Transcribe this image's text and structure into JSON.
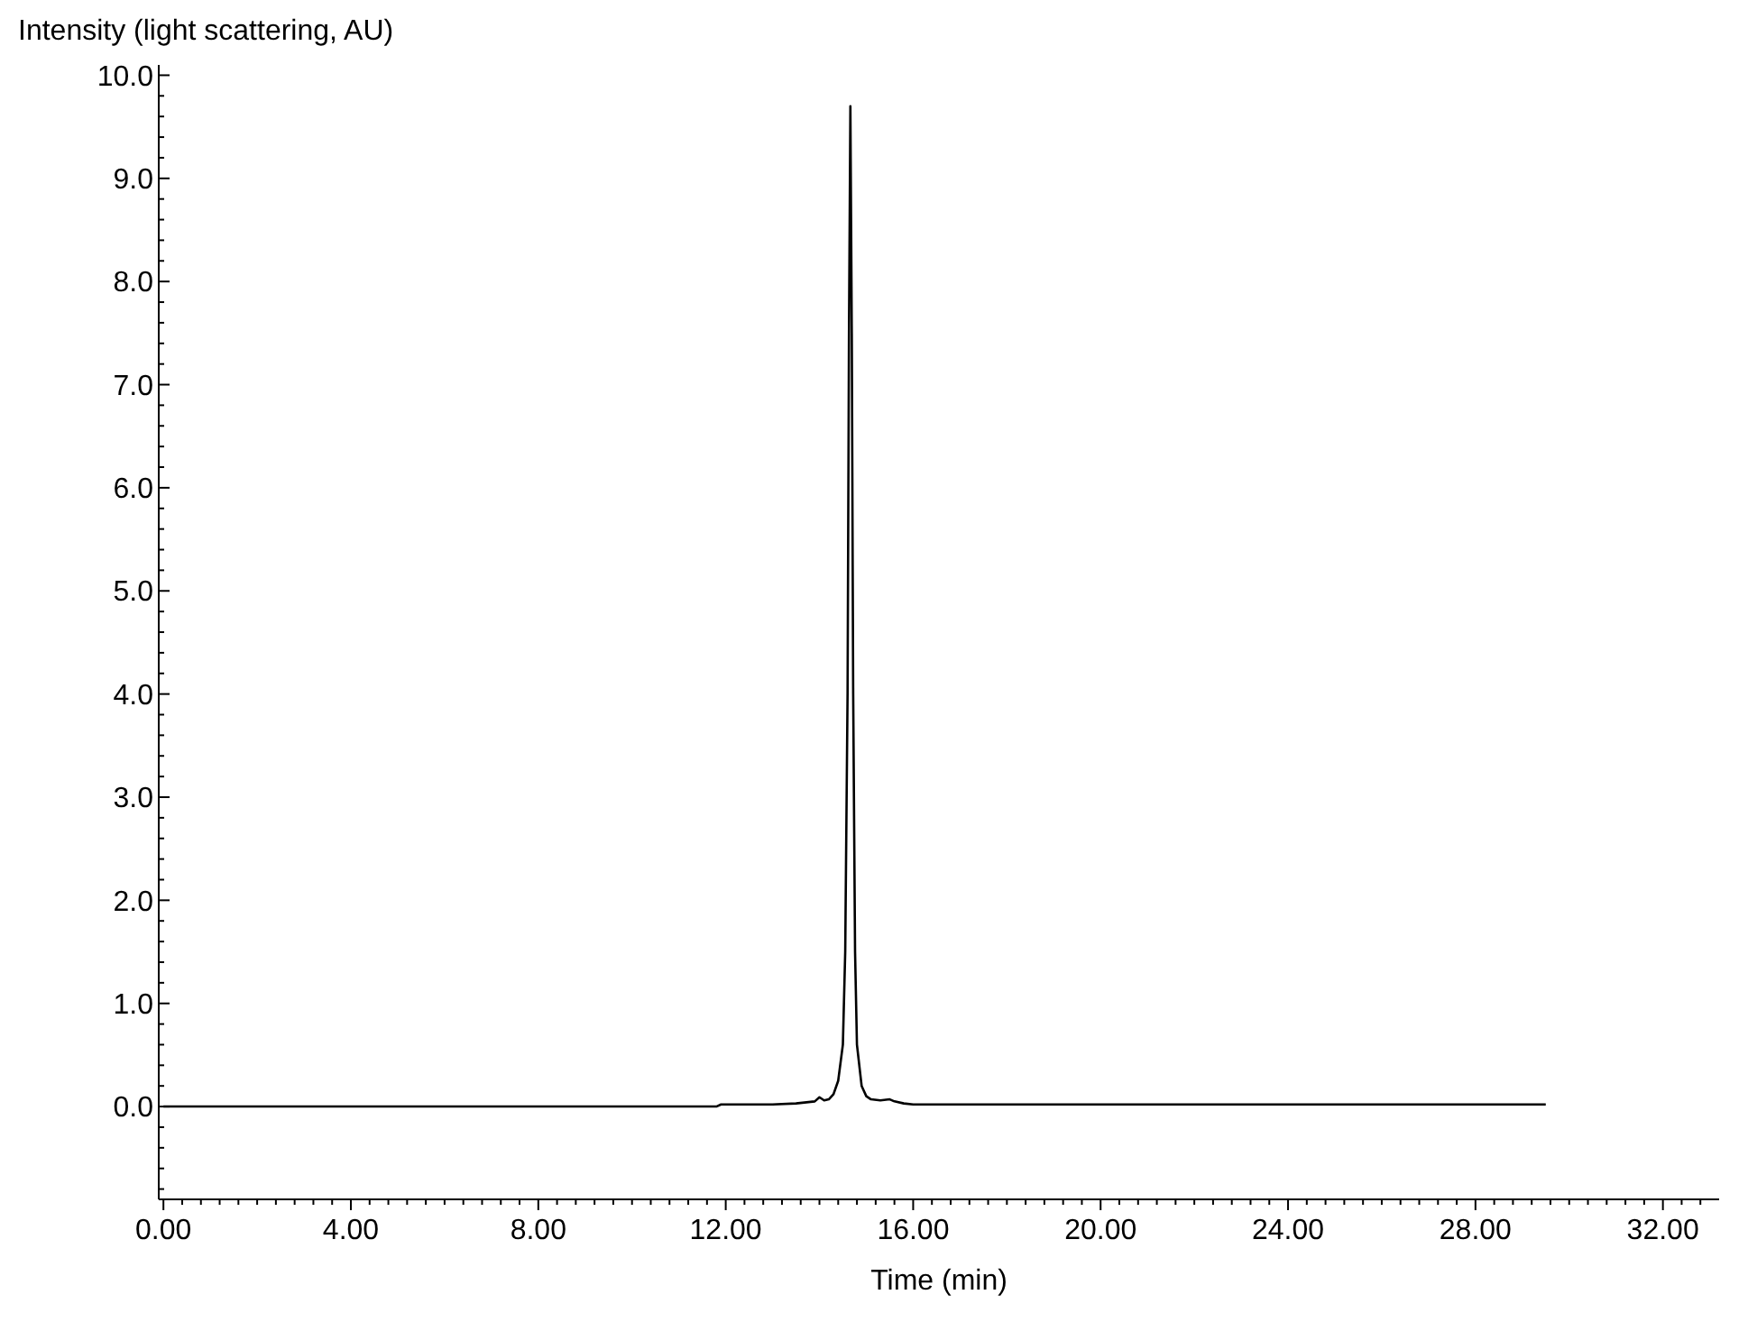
{
  "chart_data": {
    "type": "line",
    "xlabel": "Time (min)",
    "ylabel": "Intensity (light scattering, AU)",
    "x": [
      0,
      2,
      4,
      6,
      8,
      10,
      11.8,
      11.9,
      12.5,
      13,
      13.5,
      13.9,
      14.0,
      14.1,
      14.2,
      14.3,
      14.4,
      14.5,
      14.55,
      14.6,
      14.63,
      14.66,
      14.69,
      14.72,
      14.76,
      14.8,
      14.9,
      15.0,
      15.1,
      15.3,
      15.5,
      15.6,
      15.8,
      16,
      17,
      18,
      20,
      22,
      24,
      26,
      28,
      29.5
    ],
    "series": [
      {
        "color": "#000000",
        "values": [
          0,
          0,
          0,
          0,
          0,
          0,
          0,
          0.02,
          0.02,
          0.02,
          0.03,
          0.05,
          0.09,
          0.06,
          0.07,
          0.12,
          0.25,
          0.6,
          1.5,
          4,
          7.5,
          9.7,
          7.5,
          4,
          1.5,
          0.6,
          0.2,
          0.1,
          0.07,
          0.06,
          0.07,
          0.05,
          0.03,
          0.02,
          0.02,
          0.02,
          0.02,
          0.02,
          0.02,
          0.02,
          0.02,
          0.02
        ]
      }
    ],
    "xlim": [
      -0.1,
      33.2
    ],
    "ylim": [
      -0.9,
      10.1
    ],
    "grid": false,
    "line_style": "solid",
    "xticks": [
      {
        "value": 0,
        "label": "0.00"
      },
      {
        "value": 0.4,
        "label": null
      },
      {
        "value": 0.8,
        "label": null
      },
      {
        "value": 1.2,
        "label": null
      },
      {
        "value": 1.6,
        "label": null
      },
      {
        "value": 2,
        "label": null
      },
      {
        "value": 2.4,
        "label": null
      },
      {
        "value": 2.8,
        "label": null
      },
      {
        "value": 3.2,
        "label": null
      },
      {
        "value": 3.6,
        "label": null
      },
      {
        "value": 4,
        "label": "4.00"
      },
      {
        "value": 4.4,
        "label": null
      },
      {
        "value": 4.8,
        "label": null
      },
      {
        "value": 5.2,
        "label": null
      },
      {
        "value": 5.6,
        "label": null
      },
      {
        "value": 6,
        "label": null
      },
      {
        "value": 6.4,
        "label": null
      },
      {
        "value": 6.8,
        "label": null
      },
      {
        "value": 7.2,
        "label": null
      },
      {
        "value": 7.6,
        "label": null
      },
      {
        "value": 8,
        "label": "8.00"
      },
      {
        "value": 8.4,
        "label": null
      },
      {
        "value": 8.8,
        "label": null
      },
      {
        "value": 9.2,
        "label": null
      },
      {
        "value": 9.6,
        "label": null
      },
      {
        "value": 10,
        "label": null
      },
      {
        "value": 10.4,
        "label": null
      },
      {
        "value": 10.8,
        "label": null
      },
      {
        "value": 11.2,
        "label": null
      },
      {
        "value": 11.6,
        "label": null
      },
      {
        "value": 12,
        "label": "12.00"
      },
      {
        "value": 12.4,
        "label": null
      },
      {
        "value": 12.8,
        "label": null
      },
      {
        "value": 13.2,
        "label": null
      },
      {
        "value": 13.6,
        "label": null
      },
      {
        "value": 14,
        "label": null
      },
      {
        "value": 14.4,
        "label": null
      },
      {
        "value": 14.8,
        "label": null
      },
      {
        "value": 15.2,
        "label": null
      },
      {
        "value": 15.6,
        "label": null
      },
      {
        "value": 16,
        "label": "16.00"
      },
      {
        "value": 16.4,
        "label": null
      },
      {
        "value": 16.8,
        "label": null
      },
      {
        "value": 17.2,
        "label": null
      },
      {
        "value": 17.6,
        "label": null
      },
      {
        "value": 18,
        "label": null
      },
      {
        "value": 18.4,
        "label": null
      },
      {
        "value": 18.8,
        "label": null
      },
      {
        "value": 19.2,
        "label": null
      },
      {
        "value": 19.6,
        "label": null
      },
      {
        "value": 20,
        "label": "20.00"
      },
      {
        "value": 20.4,
        "label": null
      },
      {
        "value": 20.8,
        "label": null
      },
      {
        "value": 21.2,
        "label": null
      },
      {
        "value": 21.6,
        "label": null
      },
      {
        "value": 22,
        "label": null
      },
      {
        "value": 22.4,
        "label": null
      },
      {
        "value": 22.8,
        "label": null
      },
      {
        "value": 23.2,
        "label": null
      },
      {
        "value": 23.6,
        "label": null
      },
      {
        "value": 24,
        "label": "24.00"
      },
      {
        "value": 24.4,
        "label": null
      },
      {
        "value": 24.8,
        "label": null
      },
      {
        "value": 25.2,
        "label": null
      },
      {
        "value": 25.6,
        "label": null
      },
      {
        "value": 26,
        "label": null
      },
      {
        "value": 26.4,
        "label": null
      },
      {
        "value": 26.8,
        "label": null
      },
      {
        "value": 27.2,
        "label": null
      },
      {
        "value": 27.6,
        "label": null
      },
      {
        "value": 28,
        "label": "28.00"
      },
      {
        "value": 28.4,
        "label": null
      },
      {
        "value": 28.8,
        "label": null
      },
      {
        "value": 29.2,
        "label": null
      },
      {
        "value": 29.6,
        "label": null
      },
      {
        "value": 30,
        "label": null
      },
      {
        "value": 30.4,
        "label": null
      },
      {
        "value": 30.8,
        "label": null
      },
      {
        "value": 31.2,
        "label": null
      },
      {
        "value": 31.6,
        "label": null
      },
      {
        "value": 32,
        "label": "32.00"
      },
      {
        "value": 32.4,
        "label": null
      },
      {
        "value": 32.8,
        "label": null
      }
    ],
    "yticks": [
      {
        "value": -0.8,
        "label": null
      },
      {
        "value": -0.6,
        "label": null
      },
      {
        "value": -0.4,
        "label": null
      },
      {
        "value": -0.2,
        "label": null
      },
      {
        "value": 0,
        "label": "0.0"
      },
      {
        "value": 0.2,
        "label": null
      },
      {
        "value": 0.4,
        "label": null
      },
      {
        "value": 0.6,
        "label": null
      },
      {
        "value": 0.8,
        "label": null
      },
      {
        "value": 1,
        "label": "1.0"
      },
      {
        "value": 1.2,
        "label": null
      },
      {
        "value": 1.4,
        "label": null
      },
      {
        "value": 1.6,
        "label": null
      },
      {
        "value": 1.8,
        "label": null
      },
      {
        "value": 2,
        "label": "2.0"
      },
      {
        "value": 2.2,
        "label": null
      },
      {
        "value": 2.4,
        "label": null
      },
      {
        "value": 2.6,
        "label": null
      },
      {
        "value": 2.8,
        "label": null
      },
      {
        "value": 3,
        "label": "3.0"
      },
      {
        "value": 3.2,
        "label": null
      },
      {
        "value": 3.4,
        "label": null
      },
      {
        "value": 3.6,
        "label": null
      },
      {
        "value": 3.8,
        "label": null
      },
      {
        "value": 4,
        "label": "4.0"
      },
      {
        "value": 4.2,
        "label": null
      },
      {
        "value": 4.4,
        "label": null
      },
      {
        "value": 4.6,
        "label": null
      },
      {
        "value": 4.8,
        "label": null
      },
      {
        "value": 5,
        "label": "5.0"
      },
      {
        "value": 5.2,
        "label": null
      },
      {
        "value": 5.4,
        "label": null
      },
      {
        "value": 5.6,
        "label": null
      },
      {
        "value": 5.8,
        "label": null
      },
      {
        "value": 6,
        "label": "6.0"
      },
      {
        "value": 6.2,
        "label": null
      },
      {
        "value": 6.4,
        "label": null
      },
      {
        "value": 6.6,
        "label": null
      },
      {
        "value": 6.8,
        "label": null
      },
      {
        "value": 7,
        "label": "7.0"
      },
      {
        "value": 7.2,
        "label": null
      },
      {
        "value": 7.4,
        "label": null
      },
      {
        "value": 7.6,
        "label": null
      },
      {
        "value": 7.8,
        "label": null
      },
      {
        "value": 8,
        "label": "8.0"
      },
      {
        "value": 8.2,
        "label": null
      },
      {
        "value": 8.4,
        "label": null
      },
      {
        "value": 8.6,
        "label": null
      },
      {
        "value": 8.8,
        "label": null
      },
      {
        "value": 9,
        "label": "9.0"
      },
      {
        "value": 9.2,
        "label": null
      },
      {
        "value": 9.4,
        "label": null
      },
      {
        "value": 9.6,
        "label": null
      },
      {
        "value": 9.8,
        "label": null
      },
      {
        "value": 10,
        "label": "10.0"
      }
    ]
  }
}
